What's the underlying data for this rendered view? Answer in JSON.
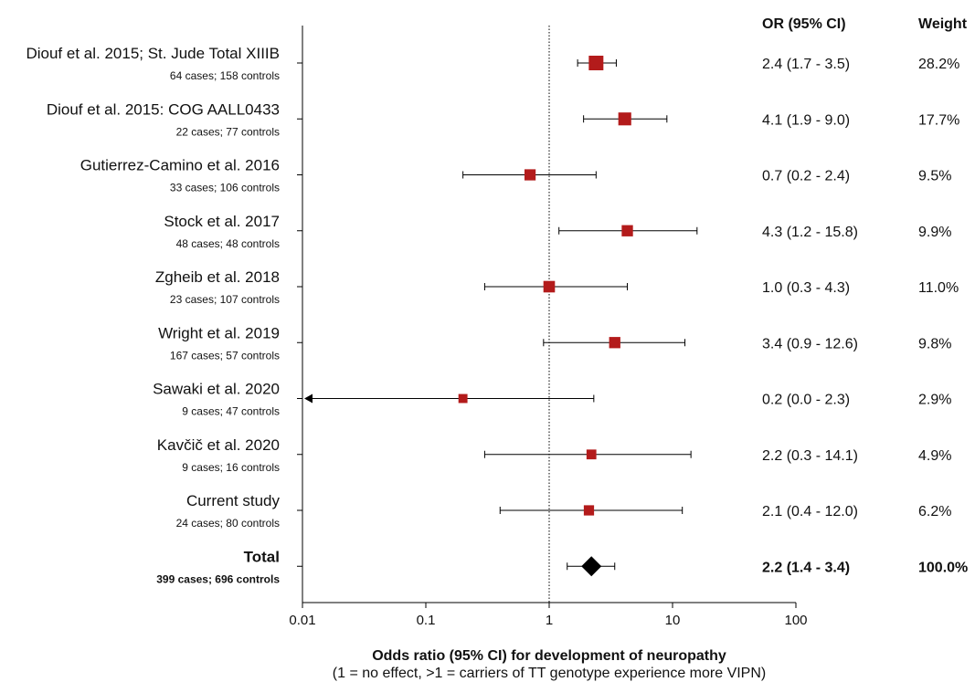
{
  "chart_data": {
    "type": "forest",
    "xscale": "log",
    "xlim": [
      0.01,
      100
    ],
    "xticks": [
      "0.01",
      "0.1",
      "1",
      "10",
      "100"
    ],
    "reference_line": 1,
    "xlabel": "Odds ratio (95% CI) for development of neuropathy",
    "xlabel_sub": "(1 = no effect, >1 = carriers of TT genotype experience more VIPN)",
    "column_headers": {
      "or": "OR (95% CI)",
      "weight": "Weight"
    },
    "studies": [
      {
        "name": "Diouf et al. 2015; St. Jude Total XIIIB",
        "sub": "64 cases; 158 controls",
        "or": 2.4,
        "lo": 1.7,
        "hi": 3.5,
        "or_text": "2.4 (1.7 - 3.5)",
        "weight": 28.2,
        "weight_text": "28.2%"
      },
      {
        "name": "Diouf et al. 2015: COG AALL0433",
        "sub": "22 cases; 77 controls",
        "or": 4.1,
        "lo": 1.9,
        "hi": 9.0,
        "or_text": "4.1 (1.9 - 9.0)",
        "weight": 17.7,
        "weight_text": "17.7%"
      },
      {
        "name": "Gutierrez-Camino et al. 2016",
        "sub": "33 cases; 106 controls",
        "or": 0.7,
        "lo": 0.2,
        "hi": 2.4,
        "or_text": "0.7 (0.2 - 2.4)",
        "weight": 9.5,
        "weight_text": "9.5%"
      },
      {
        "name": "Stock et al. 2017",
        "sub": "48 cases; 48 controls",
        "or": 4.3,
        "lo": 1.2,
        "hi": 15.8,
        "or_text": "4.3 (1.2 - 15.8)",
        "weight": 9.9,
        "weight_text": "9.9%"
      },
      {
        "name": "Zgheib et al. 2018",
        "sub": "23 cases; 107 controls",
        "or": 1.0,
        "lo": 0.3,
        "hi": 4.3,
        "or_text": "1.0 (0.3 - 4.3)",
        "weight": 11.0,
        "weight_text": "11.0%"
      },
      {
        "name": "Wright et al. 2019",
        "sub": "167 cases; 57 controls",
        "or": 3.4,
        "lo": 0.9,
        "hi": 12.6,
        "or_text": "3.4 (0.9 - 12.6)",
        "weight": 9.8,
        "weight_text": "9.8%"
      },
      {
        "name": "Sawaki et al. 2020",
        "sub": "9 cases; 47 controls",
        "or": 0.2,
        "lo": 0.0,
        "hi": 2.3,
        "lo_truncated": true,
        "or_text": "0.2 (0.0 - 2.3)",
        "weight": 2.9,
        "weight_text": "2.9%"
      },
      {
        "name": "Kavčič et al. 2020",
        "sub": "9 cases; 16 controls",
        "or": 2.2,
        "lo": 0.3,
        "hi": 14.1,
        "or_text": "2.2 (0.3 - 14.1)",
        "weight": 4.9,
        "weight_text": "4.9%"
      },
      {
        "name": "Current study",
        "sub": "24 cases; 80 controls",
        "or": 2.1,
        "lo": 0.4,
        "hi": 12.0,
        "or_text": "2.1 (0.4 - 12.0)",
        "weight": 6.2,
        "weight_text": "6.2%"
      }
    ],
    "total": {
      "name": "Total",
      "sub": "399 cases; 696 controls",
      "or": 2.2,
      "lo": 1.4,
      "hi": 3.4,
      "or_text": "2.2 (1.4 - 3.4)",
      "weight_text": "100.0%"
    },
    "colors": {
      "study_marker": "#b31b1b",
      "total_marker": "#000000",
      "line": "#000000"
    }
  }
}
